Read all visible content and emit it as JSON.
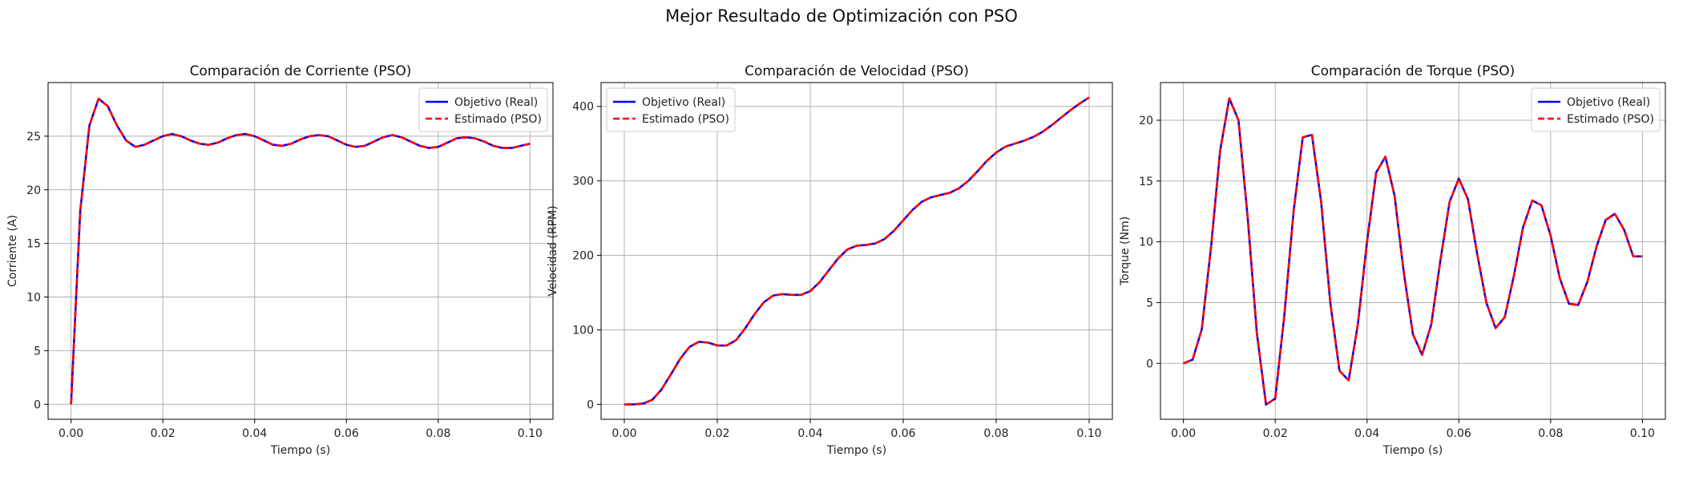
{
  "figure": {
    "title": "Mejor Resultado de Optimización con PSO"
  },
  "colors": {
    "real": "#0000ff",
    "estimated": "#ff0000",
    "grid": "#b0b0b0",
    "axes": "#000000"
  },
  "chart_data": [
    {
      "type": "line",
      "title": "Comparación de Corriente (PSO)",
      "xlabel": "Tiempo (s)",
      "ylabel": "Corriente (A)",
      "xlim": [
        -0.005,
        0.105
      ],
      "ylim": [
        -1.4,
        30.0
      ],
      "xticks": [
        0.0,
        0.02,
        0.04,
        0.06,
        0.08,
        0.1
      ],
      "xtick_labels": [
        "0.00",
        "0.02",
        "0.04",
        "0.06",
        "0.08",
        "0.10"
      ],
      "yticks": [
        0,
        5,
        10,
        15,
        20,
        25
      ],
      "ytick_labels": [
        "0",
        "5",
        "10",
        "15",
        "20",
        "25"
      ],
      "grid": true,
      "legend_position": "top-right",
      "x": [
        0.0,
        0.002,
        0.004,
        0.006,
        0.008,
        0.01,
        0.012,
        0.014,
        0.016,
        0.018,
        0.02,
        0.022,
        0.024,
        0.026,
        0.028,
        0.03,
        0.032,
        0.034,
        0.036,
        0.038,
        0.04,
        0.042,
        0.044,
        0.046,
        0.048,
        0.05,
        0.052,
        0.054,
        0.056,
        0.058,
        0.06,
        0.062,
        0.064,
        0.066,
        0.068,
        0.07,
        0.072,
        0.074,
        0.076,
        0.078,
        0.08,
        0.082,
        0.084,
        0.086,
        0.088,
        0.09,
        0.092,
        0.094,
        0.096,
        0.098,
        0.1
      ],
      "series": [
        {
          "name": "Objetivo (Real)",
          "style": "solid",
          "values": [
            0.0,
            18.0,
            26.0,
            28.5,
            27.8,
            26.0,
            24.6,
            24.0,
            24.2,
            24.6,
            25.0,
            25.2,
            25.0,
            24.6,
            24.3,
            24.2,
            24.4,
            24.8,
            25.1,
            25.2,
            25.0,
            24.6,
            24.2,
            24.1,
            24.3,
            24.7,
            25.0,
            25.1,
            25.0,
            24.6,
            24.2,
            24.0,
            24.1,
            24.5,
            24.9,
            25.1,
            24.9,
            24.5,
            24.1,
            23.9,
            24.0,
            24.4,
            24.8,
            24.9,
            24.8,
            24.5,
            24.1,
            23.9,
            23.9,
            24.1,
            24.3
          ]
        },
        {
          "name": "Estimado (PSO)",
          "style": "dashed",
          "values": [
            0.0,
            18.0,
            26.0,
            28.5,
            27.8,
            26.0,
            24.6,
            24.0,
            24.2,
            24.6,
            25.0,
            25.2,
            25.0,
            24.6,
            24.3,
            24.2,
            24.4,
            24.8,
            25.1,
            25.2,
            25.0,
            24.6,
            24.2,
            24.1,
            24.3,
            24.7,
            25.0,
            25.1,
            25.0,
            24.6,
            24.2,
            24.0,
            24.1,
            24.5,
            24.9,
            25.1,
            24.9,
            24.5,
            24.1,
            23.9,
            24.0,
            24.4,
            24.8,
            24.9,
            24.8,
            24.5,
            24.1,
            23.9,
            23.9,
            24.1,
            24.3
          ]
        }
      ]
    },
    {
      "type": "line",
      "title": "Comparación de Velocidad (PSO)",
      "xlabel": "Tiempo (s)",
      "ylabel": "Velocidad (RPM)",
      "xlim": [
        -0.005,
        0.105
      ],
      "ylim": [
        -20.0,
        432.0
      ],
      "xticks": [
        0.0,
        0.02,
        0.04,
        0.06,
        0.08,
        0.1
      ],
      "xtick_labels": [
        "0.00",
        "0.02",
        "0.04",
        "0.06",
        "0.08",
        "0.10"
      ],
      "yticks": [
        0,
        100,
        200,
        300,
        400
      ],
      "ytick_labels": [
        "0",
        "100",
        "200",
        "300",
        "400"
      ],
      "grid": true,
      "legend_position": "top-left",
      "x": [
        0.0,
        0.002,
        0.004,
        0.006,
        0.008,
        0.01,
        0.012,
        0.014,
        0.016,
        0.018,
        0.02,
        0.022,
        0.024,
        0.026,
        0.028,
        0.03,
        0.032,
        0.034,
        0.036,
        0.038,
        0.04,
        0.042,
        0.044,
        0.046,
        0.048,
        0.05,
        0.052,
        0.054,
        0.056,
        0.058,
        0.06,
        0.062,
        0.064,
        0.066,
        0.068,
        0.07,
        0.072,
        0.074,
        0.076,
        0.078,
        0.08,
        0.082,
        0.084,
        0.086,
        0.088,
        0.09,
        0.092,
        0.094,
        0.096,
        0.098,
        0.1
      ],
      "series": [
        {
          "name": "Objetivo (Real)",
          "style": "solid",
          "values": [
            0,
            0,
            1,
            6,
            20,
            40,
            61,
            77,
            84,
            83,
            79,
            79,
            86,
            102,
            121,
            137,
            146,
            148,
            147,
            147,
            152,
            164,
            180,
            196,
            208,
            213,
            214,
            216,
            222,
            233,
            247,
            261,
            272,
            278,
            281,
            284,
            290,
            300,
            313,
            327,
            338,
            346,
            350,
            354,
            359,
            366,
            375,
            385,
            395,
            404,
            412
          ]
        },
        {
          "name": "Estimado (PSO)",
          "style": "dashed",
          "values": [
            0,
            0,
            1,
            6,
            20,
            40,
            61,
            77,
            84,
            83,
            79,
            79,
            86,
            102,
            121,
            137,
            146,
            148,
            147,
            147,
            152,
            164,
            180,
            196,
            208,
            213,
            214,
            216,
            222,
            233,
            247,
            261,
            272,
            278,
            281,
            284,
            290,
            300,
            313,
            327,
            338,
            346,
            350,
            354,
            359,
            366,
            375,
            385,
            395,
            404,
            412
          ]
        }
      ]
    },
    {
      "type": "line",
      "title": "Comparación de Torque (PSO)",
      "xlabel": "Tiempo (s)",
      "ylabel": "Torque (Nm)",
      "xlim": [
        -0.005,
        0.105
      ],
      "ylim": [
        -4.6,
        23.1
      ],
      "xticks": [
        0.0,
        0.02,
        0.04,
        0.06,
        0.08,
        0.1
      ],
      "xtick_labels": [
        "0.00",
        "0.02",
        "0.04",
        "0.06",
        "0.08",
        "0.10"
      ],
      "yticks": [
        0,
        5,
        10,
        15,
        20
      ],
      "ytick_labels": [
        "0",
        "5",
        "10",
        "15",
        "20"
      ],
      "grid": true,
      "legend_position": "top-right",
      "x": [
        0.0,
        0.002,
        0.004,
        0.006,
        0.008,
        0.01,
        0.012,
        0.014,
        0.016,
        0.018,
        0.02,
        0.022,
        0.024,
        0.026,
        0.028,
        0.03,
        0.032,
        0.034,
        0.036,
        0.038,
        0.04,
        0.042,
        0.044,
        0.046,
        0.048,
        0.05,
        0.052,
        0.054,
        0.056,
        0.058,
        0.06,
        0.062,
        0.064,
        0.066,
        0.068,
        0.07,
        0.072,
        0.074,
        0.076,
        0.078,
        0.08,
        0.082,
        0.084,
        0.086,
        0.088,
        0.09,
        0.092,
        0.094,
        0.096,
        0.098,
        0.1
      ],
      "series": [
        {
          "name": "Objetivo (Real)",
          "style": "solid",
          "values": [
            0.0,
            0.3,
            2.8,
            9.5,
            17.5,
            21.8,
            20.0,
            12.0,
            2.5,
            -3.4,
            -2.9,
            4.0,
            12.5,
            18.6,
            18.8,
            13.3,
            5.0,
            -0.6,
            -1.4,
            3.2,
            10.0,
            15.7,
            17.0,
            13.8,
            7.5,
            2.4,
            0.7,
            3.2,
            8.5,
            13.3,
            15.2,
            13.5,
            9.0,
            5.0,
            2.9,
            3.8,
            7.2,
            11.2,
            13.4,
            13.0,
            10.5,
            7.0,
            4.9,
            4.8,
            6.7,
            9.6,
            11.8,
            12.3,
            11.0,
            8.8,
            8.8
          ]
        },
        {
          "name": "Estimado (PSO)",
          "style": "dashed",
          "values": [
            0.0,
            0.3,
            2.8,
            9.5,
            17.5,
            21.8,
            20.0,
            12.0,
            2.5,
            -3.4,
            -2.9,
            4.0,
            12.5,
            18.6,
            18.8,
            13.3,
            5.0,
            -0.6,
            -1.4,
            3.2,
            10.0,
            15.7,
            17.0,
            13.8,
            7.5,
            2.4,
            0.7,
            3.2,
            8.5,
            13.3,
            15.2,
            13.5,
            9.0,
            5.0,
            2.9,
            3.8,
            7.2,
            11.2,
            13.4,
            13.0,
            10.5,
            7.0,
            4.9,
            4.8,
            6.7,
            9.6,
            11.8,
            12.3,
            11.0,
            8.8,
            8.8
          ]
        }
      ]
    }
  ]
}
